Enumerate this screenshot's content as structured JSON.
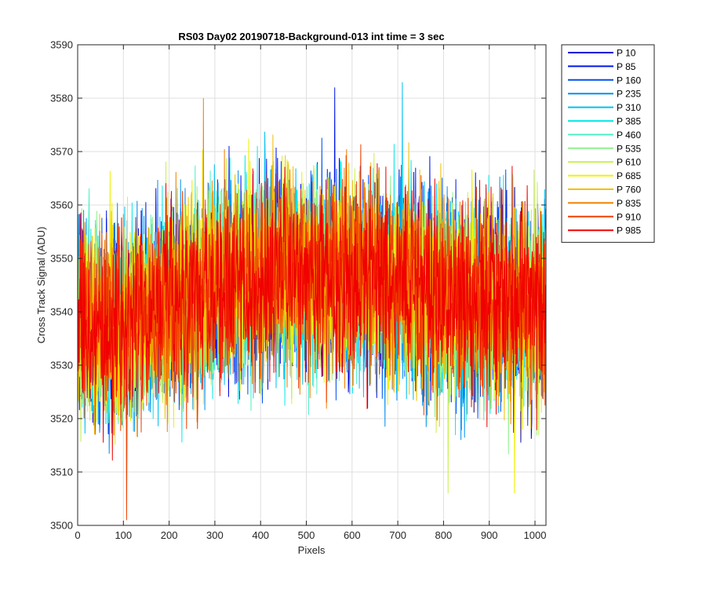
{
  "chart_data": {
    "type": "line",
    "title": "RS03 Day02 20190718-Background-013 int time = 3 sec",
    "xlabel": "Pixels",
    "ylabel": "Cross Track Signal (ADU)",
    "xlim": [
      0,
      1024
    ],
    "ylim": [
      3500,
      3590
    ],
    "x_ticks": [
      0,
      100,
      200,
      300,
      400,
      500,
      600,
      700,
      800,
      900,
      1000
    ],
    "y_ticks": [
      3500,
      3510,
      3520,
      3530,
      3540,
      3550,
      3560,
      3570,
      3580,
      3590
    ],
    "grid": true,
    "legend_position": "outside-top-right",
    "x_points": [
      0,
      50,
      100,
      150,
      200,
      250,
      300,
      350,
      400,
      450,
      500,
      550,
      600,
      650,
      700,
      750,
      800,
      850,
      900,
      950,
      1000,
      1023
    ],
    "mean_profile": [
      3537,
      3538,
      3538,
      3539,
      3541,
      3543,
      3545,
      3546,
      3547,
      3547,
      3547,
      3547,
      3547,
      3546,
      3545,
      3544,
      3543,
      3542,
      3542,
      3541,
      3541,
      3541
    ],
    "noise_amplitude": 9,
    "extremes": [
      {
        "x": 107,
        "y": 3501,
        "series": "P 910"
      },
      {
        "x": 562,
        "y": 3582,
        "series": "P 85"
      },
      {
        "x": 710,
        "y": 3583,
        "series": "P 310"
      },
      {
        "x": 275,
        "y": 3580,
        "series": "P 835"
      },
      {
        "x": 810,
        "y": 3506,
        "series": "P 610"
      },
      {
        "x": 955,
        "y": 3506,
        "series": "P 685"
      }
    ],
    "series": [
      {
        "name": "P 10",
        "color": "#0000d8"
      },
      {
        "name": "P 85",
        "color": "#0018e8"
      },
      {
        "name": "P 160",
        "color": "#0050f0"
      },
      {
        "name": "P 235",
        "color": "#0090f0"
      },
      {
        "name": "P 310",
        "color": "#00c0f0"
      },
      {
        "name": "P 385",
        "color": "#10e8e8"
      },
      {
        "name": "P 460",
        "color": "#50f0c8"
      },
      {
        "name": "P 535",
        "color": "#90f090"
      },
      {
        "name": "P 610",
        "color": "#c8f050"
      },
      {
        "name": "P 685",
        "color": "#f0f000"
      },
      {
        "name": "P 760",
        "color": "#f0c000"
      },
      {
        "name": "P 835",
        "color": "#f08000"
      },
      {
        "name": "P 910",
        "color": "#f04000"
      },
      {
        "name": "P 985",
        "color": "#f00000"
      }
    ]
  }
}
